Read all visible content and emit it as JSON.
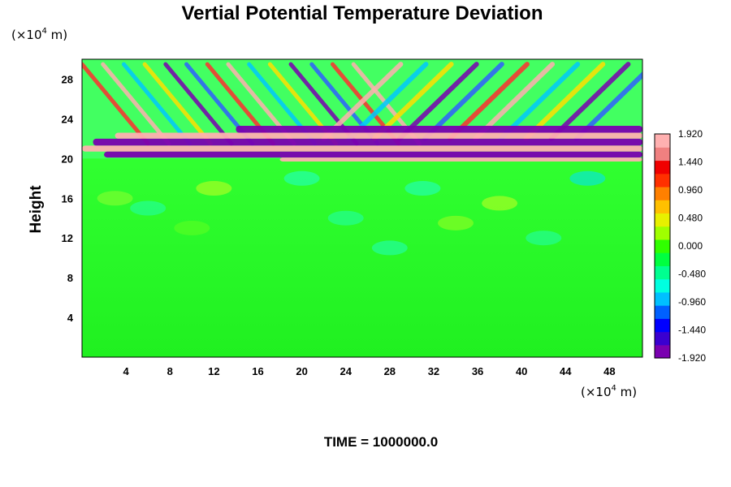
{
  "chart_data": {
    "type": "heatmap",
    "title": "Vertial Potential Temperature Deviation",
    "ylabel": "Height",
    "y_unit": {
      "prefix": "(×10",
      "exp": "4",
      "suffix": " m)"
    },
    "x_unit": {
      "prefix": "(×10",
      "exp": "4",
      "suffix": " m)"
    },
    "xlim": [
      0,
      51
    ],
    "ylim": [
      0,
      30
    ],
    "x_ticks": [
      4,
      8,
      12,
      16,
      20,
      24,
      28,
      32,
      36,
      40,
      44,
      48
    ],
    "y_ticks": [
      4,
      8,
      12,
      16,
      20,
      24,
      28
    ],
    "colorbar": {
      "min": -1.92,
      "max": 1.92,
      "tick_values": [
        -1.92,
        -1.44,
        -0.96,
        -0.48,
        0.0,
        0.48,
        0.96,
        1.44,
        1.92
      ],
      "tick_labels": [
        "-1.920",
        "-1.440",
        "-0.960",
        "-0.480",
        "0.000",
        "0.480",
        "0.960",
        "1.440",
        "1.920"
      ],
      "colors": [
        "#7a00b0",
        "#3a00d0",
        "#0000ff",
        "#0060ff",
        "#00c0ff",
        "#00ffe0",
        "#00ff90",
        "#00ff40",
        "#30ff00",
        "#a0ff00",
        "#e8f000",
        "#ffc000",
        "#ff8000",
        "#ff3000",
        "#f00000",
        "#f08080",
        "#ffb0b0"
      ]
    },
    "grid": false,
    "time_label": "TIME = 1000000.0"
  }
}
